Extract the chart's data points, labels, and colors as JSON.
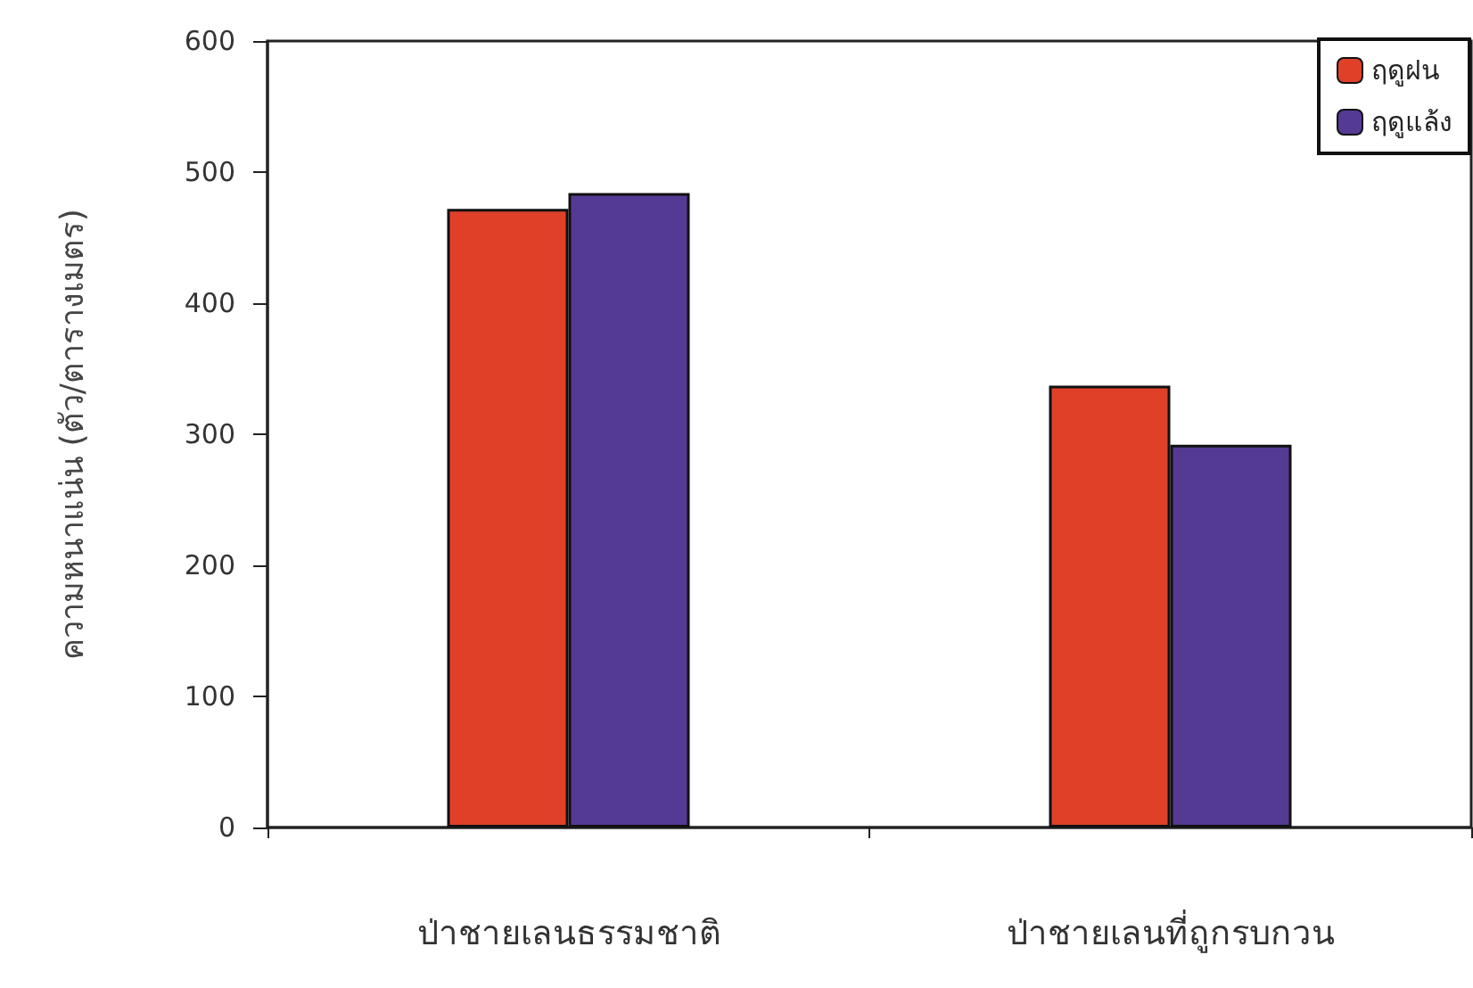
{
  "chart_data": {
    "type": "bar",
    "ylabel": "ความหนาแน่น (ตัว/ตารางเมตร)",
    "categories": [
      "ป่าชายเลนธรรมชาติ",
      "ป่าชายเลนที่ถูกรบกวน"
    ],
    "series": [
      {
        "name": "ฤดูฝน",
        "color": "#e04028",
        "values": [
          472,
          337
        ]
      },
      {
        "name": "ฤดูแล้ง",
        "color": "#553a94",
        "values": [
          484,
          292
        ]
      }
    ],
    "ylim": [
      0,
      600
    ],
    "yticks": [
      0,
      100,
      200,
      300,
      400,
      500,
      600
    ],
    "grid": false,
    "legend": "top right"
  }
}
